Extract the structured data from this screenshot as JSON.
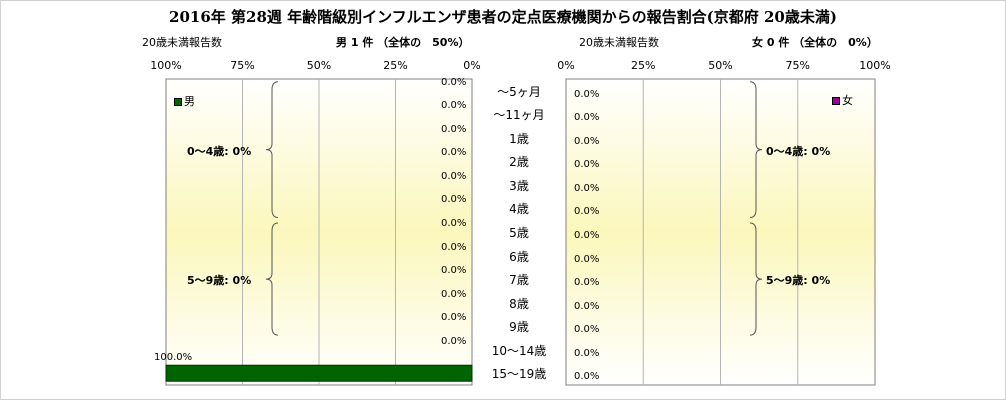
{
  "title": "2016年 第28週 年齢階級別インフルエンザ患者の定点医療機関からの報告割合(京都府 20歳未満)",
  "colors": {
    "male": "#006400",
    "female": "#990099",
    "plot_bg_center": "#fbf7bc",
    "plot_bg_edge": "#ffffff",
    "grid": "#b4b4b4"
  },
  "chart_data": [
    {
      "type": "bar",
      "orientation": "horizontal",
      "direction": "right-to-left",
      "panel": "male",
      "header_left": "20歳未満報告数",
      "header_count": "男 1 件 （全体の　50%）",
      "legend": "男",
      "xlim": [
        0,
        100
      ],
      "tick_labels": [
        "100%",
        "75%",
        "50%",
        "25%",
        "0%"
      ],
      "categories": [
        "～5ヶ月",
        "～11ヶ月",
        "1歳",
        "2歳",
        "3歳",
        "4歳",
        "5歳",
        "6歳",
        "7歳",
        "8歳",
        "9歳",
        "10～14歳",
        "15～19歳"
      ],
      "values": [
        0,
        0,
        0,
        0,
        0,
        0,
        0,
        0,
        0,
        0,
        0,
        0,
        100
      ],
      "value_labels": [
        "0.0%",
        "0.0%",
        "0.0%",
        "0.0%",
        "0.0%",
        "0.0%",
        "0.0%",
        "0.0%",
        "0.0%",
        "0.0%",
        "0.0%",
        "0.0%",
        "100.0%"
      ],
      "groups": [
        {
          "label": "0～4歳: 0%",
          "from": 0,
          "to": 5
        },
        {
          "label": "5～9歳: 0%",
          "from": 6,
          "to": 10
        }
      ]
    },
    {
      "type": "bar",
      "orientation": "horizontal",
      "direction": "left-to-right",
      "panel": "female",
      "header_left": "20歳未満報告数",
      "header_count": "女 0 件 （全体の　0%）",
      "legend": "女",
      "xlim": [
        0,
        100
      ],
      "tick_labels": [
        "0%",
        "25%",
        "50%",
        "75%",
        "100%"
      ],
      "categories": [
        "～5ヶ月",
        "～11ヶ月",
        "1歳",
        "2歳",
        "3歳",
        "4歳",
        "5歳",
        "6歳",
        "7歳",
        "8歳",
        "9歳",
        "10～14歳",
        "15～19歳"
      ],
      "values": [
        0,
        0,
        0,
        0,
        0,
        0,
        0,
        0,
        0,
        0,
        0,
        0,
        0
      ],
      "value_labels": [
        "0.0%",
        "0.0%",
        "0.0%",
        "0.0%",
        "0.0%",
        "0.0%",
        "0.0%",
        "0.0%",
        "0.0%",
        "0.0%",
        "0.0%",
        "0.0%",
        "0.0%"
      ],
      "groups": [
        {
          "label": "0～4歳: 0%",
          "from": 0,
          "to": 5
        },
        {
          "label": "5～9歳: 0%",
          "from": 6,
          "to": 10
        }
      ]
    }
  ]
}
